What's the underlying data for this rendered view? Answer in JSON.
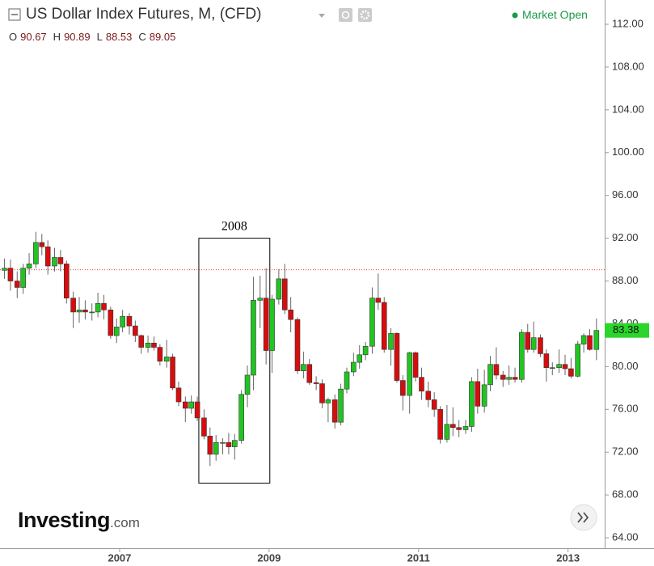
{
  "chart_data": {
    "type": "candlestick",
    "title": "US Dollar Index Futures, M, (CFD)",
    "ohlc_legend": [
      {
        "label": "O",
        "value": 90.67
      },
      {
        "label": "H",
        "value": 90.89
      },
      {
        "label": "L",
        "value": 88.53
      },
      {
        "label": "C",
        "value": 89.05
      }
    ],
    "status": "Market Open",
    "last_price": 83.38,
    "brand": {
      "name": "Investing",
      "suffix": ".com"
    },
    "x": [
      2005.46,
      2005.54,
      2005.63,
      2005.71,
      2005.79,
      2005.88,
      2005.96,
      2006.04,
      2006.13,
      2006.21,
      2006.29,
      2006.38,
      2006.46,
      2006.54,
      2006.63,
      2006.71,
      2006.79,
      2006.88,
      2006.96,
      2007.04,
      2007.13,
      2007.21,
      2007.29,
      2007.38,
      2007.46,
      2007.54,
      2007.63,
      2007.71,
      2007.79,
      2007.88,
      2007.96,
      2008.04,
      2008.13,
      2008.21,
      2008.29,
      2008.38,
      2008.46,
      2008.54,
      2008.63,
      2008.71,
      2008.79,
      2008.88,
      2008.96,
      2009.04,
      2009.13,
      2009.21,
      2009.29,
      2009.38,
      2009.46,
      2009.54,
      2009.63,
      2009.71,
      2009.79,
      2009.88,
      2009.96,
      2010.04,
      2010.13,
      2010.21,
      2010.29,
      2010.38,
      2010.46,
      2010.54,
      2010.63,
      2010.71,
      2010.79,
      2010.88,
      2010.96,
      2011.04,
      2011.13,
      2011.21,
      2011.29,
      2011.38,
      2011.46,
      2011.54,
      2011.63,
      2011.71,
      2011.79,
      2011.88,
      2011.96,
      2012.04,
      2012.13,
      2012.21,
      2012.29,
      2012.38,
      2012.46,
      2012.54,
      2012.63,
      2012.71,
      2012.79,
      2012.88,
      2012.96,
      2013.04,
      2013.13,
      2013.21,
      2013.29,
      2013.38
    ],
    "open": [
      89.0,
      89.2,
      88.0,
      87.4,
      89.2,
      89.6,
      91.6,
      91.2,
      89.4,
      90.2,
      89.6,
      86.4,
      85.1,
      85.3,
      85.1,
      85.1,
      85.9,
      85.3,
      82.9,
      83.7,
      84.7,
      83.8,
      82.9,
      81.8,
      82.2,
      81.8,
      80.5,
      80.9,
      78.0,
      76.7,
      76.1,
      76.7,
      75.2,
      73.5,
      71.8,
      72.9,
      72.9,
      72.5,
      73.1,
      77.4,
      79.2,
      86.2,
      86.4,
      81.5,
      86.3,
      88.2,
      85.3,
      84.4,
      79.6,
      80.2,
      78.5,
      78.4,
      76.6,
      76.9,
      74.8,
      77.9,
      79.5,
      80.4,
      81.1,
      81.9,
      86.4,
      86.0,
      81.6,
      83.1,
      78.7,
      77.3,
      81.3,
      79.0,
      77.7,
      76.9,
      76.0,
      73.2,
      74.6,
      74.3,
      74.1,
      74.4,
      78.6,
      76.3,
      78.3,
      80.2,
      79.2,
      78.8,
      79.0,
      78.8,
      83.2,
      81.6,
      82.7,
      81.2,
      79.9,
      79.9,
      80.2,
      79.8,
      79.1,
      82.1,
      82.9,
      81.6
    ],
    "high": [
      90.1,
      90.0,
      88.9,
      89.6,
      90.6,
      92.6,
      92.4,
      91.8,
      91.1,
      90.9,
      89.9,
      87.0,
      86.5,
      86.2,
      85.9,
      86.9,
      86.7,
      85.6,
      84.5,
      85.3,
      85.0,
      84.3,
      83.0,
      82.9,
      82.8,
      82.1,
      82.5,
      81.2,
      78.6,
      77.2,
      77.3,
      77.2,
      76.0,
      74.3,
      73.6,
      73.3,
      73.8,
      73.7,
      77.8,
      80.1,
      88.4,
      88.5,
      89.2,
      86.7,
      89.1,
      89.6,
      86.5,
      84.6,
      81.4,
      80.7,
      79.1,
      78.8,
      77.1,
      77.4,
      78.4,
      79.9,
      81.3,
      82.0,
      82.3,
      87.4,
      88.7,
      86.5,
      83.6,
      83.2,
      79.2,
      81.4,
      81.4,
      79.9,
      78.6,
      77.6,
      76.3,
      76.4,
      76.2,
      75.0,
      75.0,
      79.0,
      79.8,
      79.7,
      81.0,
      81.8,
      79.6,
      80.1,
      79.9,
      83.5,
      84.0,
      84.2,
      83.0,
      81.6,
      80.4,
      81.6,
      81.1,
      80.8,
      82.4,
      83.1,
      83.5,
      84.5
    ],
    "low": [
      88.2,
      87.1,
      86.4,
      86.8,
      88.6,
      89.2,
      90.4,
      88.6,
      88.9,
      88.9,
      85.9,
      83.6,
      84.1,
      84.4,
      84.3,
      84.6,
      84.4,
      82.6,
      82.2,
      83.2,
      83.0,
      82.3,
      81.2,
      81.3,
      81.5,
      80.1,
      79.9,
      77.8,
      76.3,
      74.8,
      75.6,
      74.9,
      73.2,
      70.7,
      71.2,
      71.8,
      71.8,
      71.3,
      72.8,
      76.2,
      77.8,
      83.6,
      80.2,
      79.4,
      85.8,
      84.9,
      83.2,
      79.3,
      78.9,
      78.3,
      77.8,
      76.1,
      74.8,
      74.2,
      74.5,
      77.5,
      79.1,
      79.8,
      80.6,
      81.2,
      85.3,
      81.3,
      80.1,
      78.5,
      75.9,
      75.6,
      78.6,
      76.9,
      76.2,
      75.3,
      72.8,
      72.9,
      73.5,
      73.4,
      73.7,
      73.9,
      75.6,
      75.7,
      77.7,
      78.8,
      78.1,
      78.3,
      78.5,
      78.5,
      81.3,
      81.3,
      80.9,
      78.6,
      79.2,
      79.4,
      79.2,
      78.9,
      79.0,
      81.3,
      81.5,
      80.6
    ],
    "close": [
      89.2,
      88.0,
      87.4,
      89.2,
      89.6,
      91.6,
      91.2,
      89.4,
      90.2,
      89.6,
      86.4,
      85.1,
      85.3,
      85.1,
      85.1,
      85.9,
      85.3,
      82.9,
      83.7,
      84.7,
      83.8,
      82.9,
      81.8,
      82.2,
      81.8,
      80.5,
      80.9,
      78.0,
      76.7,
      76.1,
      76.7,
      75.2,
      73.5,
      71.8,
      72.9,
      72.9,
      72.5,
      73.1,
      77.4,
      79.2,
      86.2,
      86.4,
      81.5,
      86.3,
      88.2,
      85.3,
      84.4,
      79.6,
      80.2,
      78.5,
      78.4,
      76.6,
      76.9,
      74.8,
      77.9,
      79.5,
      80.4,
      81.1,
      81.9,
      86.4,
      86.0,
      81.6,
      83.1,
      78.7,
      77.3,
      81.3,
      79.0,
      77.7,
      76.9,
      76.0,
      73.2,
      74.6,
      74.3,
      74.1,
      74.4,
      78.6,
      76.3,
      78.3,
      80.2,
      79.2,
      78.8,
      79.0,
      78.8,
      83.2,
      81.6,
      82.7,
      81.2,
      79.9,
      79.9,
      80.2,
      79.8,
      79.1,
      82.1,
      82.9,
      81.6,
      83.38
    ],
    "up_color": "#22c422",
    "down_color": "#d70d0d",
    "xlim": [
      2005.4,
      2013.49
    ],
    "xticks": [
      2007,
      2009,
      2011,
      2013
    ],
    "ylim": [
      63.02,
      114.27
    ],
    "yticks": [
      {
        "value": 64,
        "label": "64.00"
      },
      {
        "value": 68,
        "label": "68.00"
      },
      {
        "value": 72,
        "label": "72.00"
      },
      {
        "value": 76,
        "label": "76.00"
      },
      {
        "value": 80,
        "label": "80.00"
      },
      {
        "value": 84,
        "label": "84.00"
      },
      {
        "value": 88,
        "label": "88.00"
      },
      {
        "value": 92,
        "label": "92.00"
      },
      {
        "value": 96,
        "label": "96.00"
      },
      {
        "value": 100,
        "label": "100.00"
      },
      {
        "value": 104,
        "label": "104.00"
      },
      {
        "value": 108,
        "label": "108.00"
      },
      {
        "value": 112,
        "label": "112.00"
      }
    ],
    "annotation": {
      "text": "2008",
      "x": [
        2008.06,
        2009.01
      ],
      "y": [
        92.0,
        69.1
      ]
    },
    "grid": false
  }
}
